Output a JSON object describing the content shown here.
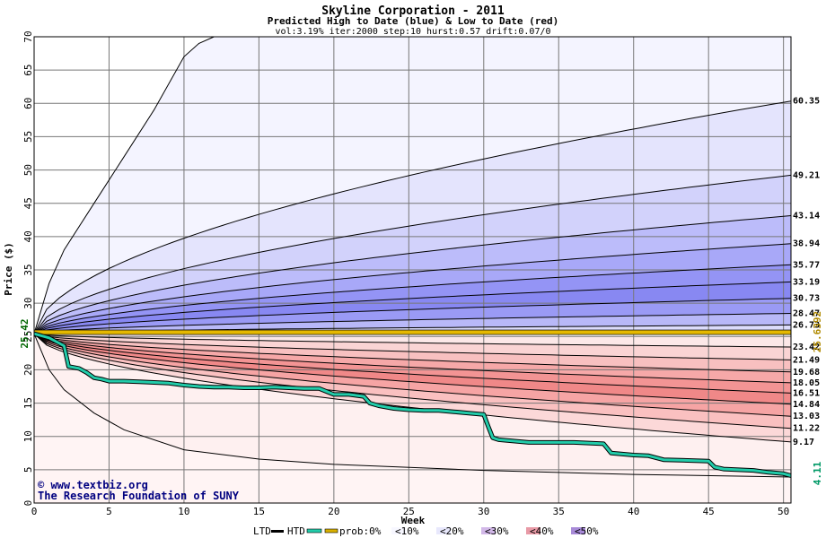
{
  "chart_data": {
    "type": "area",
    "title": "Skyline Corporation - 2011",
    "subtitle": "Predicted High to Date (blue) &  Low to Date (red)",
    "params": "vol:3.19% iter:2000 step:10 hurst:0.57 drift:0.07/0",
    "xlabel": "Week",
    "ylabel": "Price ($)",
    "xlim": [
      0,
      50.5
    ],
    "ylim": [
      0,
      70
    ],
    "x_ticks": [
      0,
      5,
      10,
      15,
      20,
      25,
      30,
      35,
      40,
      45,
      50
    ],
    "y_ticks": [
      0,
      5,
      10,
      15,
      20,
      25,
      30,
      35,
      40,
      45,
      50,
      55,
      60,
      65,
      70
    ],
    "grid": true,
    "start_price": 25.42,
    "start_label": "25.42",
    "reference_price": 25.6392,
    "reference_label": "25.6392",
    "last_price": 4.11,
    "last_label": "4.11",
    "high_band_end_values": [
      {
        "label": "60.35",
        "value": 60.35
      },
      {
        "label": "49.21",
        "value": 49.21
      },
      {
        "label": "43.14",
        "value": 43.14
      },
      {
        "label": "38.94",
        "value": 38.94
      },
      {
        "label": "35.77",
        "value": 35.77
      },
      {
        "label": "33.19",
        "value": 33.19
      },
      {
        "label": "30.73",
        "value": 30.73
      },
      {
        "label": "28.47",
        "value": 28.47
      },
      {
        "label": "26.73",
        "value": 26.73
      }
    ],
    "low_band_end_values": [
      {
        "label": "23.42",
        "value": 23.42
      },
      {
        "label": "21.49",
        "value": 21.49
      },
      {
        "label": "19.68",
        "value": 19.68
      },
      {
        "label": "18.05",
        "value": 18.05
      },
      {
        "label": "16.51",
        "value": 16.51
      },
      {
        "label": "14.84",
        "value": 14.84
      },
      {
        "label": "13.03",
        "value": 13.03
      },
      {
        "label": "11.22",
        "value": 11.22
      },
      {
        "label": "9.17",
        "value": 9.17
      }
    ],
    "outer_high_values": {
      "x": [
        0,
        1,
        2,
        4,
        6,
        8,
        10,
        11,
        12
      ],
      "y": [
        25.42,
        33,
        38,
        45,
        52,
        59,
        67,
        69,
        70
      ]
    },
    "outer_low_values": {
      "x": [
        0,
        1,
        2,
        4,
        6,
        10,
        15,
        20,
        30,
        40,
        50.5
      ],
      "y": [
        25.42,
        20,
        17,
        13.5,
        11,
        8,
        6.6,
        5.8,
        4.9,
        4.3,
        3.9
      ]
    },
    "price_path": {
      "x": [
        0,
        1,
        2,
        2.3,
        3,
        3.5,
        4,
        4.5,
        5,
        6,
        7,
        9,
        10,
        11,
        12,
        13,
        14,
        15,
        16,
        18,
        19,
        20,
        21,
        22,
        22.4,
        23,
        24,
        25,
        26,
        27,
        28,
        29,
        30,
        30.3,
        30.6,
        31,
        33,
        34,
        36,
        38,
        38.5,
        39,
        40,
        41,
        42,
        45,
        45.4,
        46,
        47,
        48,
        49,
        50,
        50.5
      ],
      "y": [
        25.42,
        24.8,
        23.6,
        20.5,
        20.2,
        19.6,
        18.8,
        18.6,
        18.3,
        18.3,
        18.2,
        18,
        17.7,
        17.5,
        17.4,
        17.4,
        17.3,
        17.3,
        17.4,
        17.2,
        17.2,
        16.3,
        16.3,
        16,
        15,
        14.6,
        14.2,
        14,
        13.9,
        13.9,
        13.7,
        13.5,
        13.3,
        11.5,
        9.8,
        9.5,
        9.1,
        9.1,
        9.1,
        8.9,
        7.5,
        7.4,
        7.2,
        7.1,
        6.5,
        6.3,
        5.4,
        5.1,
        5,
        4.9,
        4.6,
        4.4,
        4.11
      ]
    },
    "legend": [
      {
        "label": "LTD",
        "color": "#000000"
      },
      {
        "label": "HTD",
        "color": "#22ccaa"
      },
      {
        "label": "prob:0%",
        "color": "#d9b100"
      },
      {
        "label": "<10%",
        "color": "#f7f7ff"
      },
      {
        "label": "<20%",
        "color": "#e8e8fc"
      },
      {
        "label": "<30%",
        "color": "#d2b8e8"
      },
      {
        "label": "<40%",
        "color": "#e89aa6"
      },
      {
        "label": "<50%",
        "color": "#a88ad8"
      }
    ],
    "colors": {
      "blue_bands": [
        "#f4f4ff",
        "#e4e4fd",
        "#d2d2fb",
        "#bcbcfa",
        "#a8a8f8",
        "#9494f5",
        "#8888f2",
        "#9a9af5",
        "#b8b8f8",
        "#dcdcfb"
      ],
      "red_bands": [
        "#fce8e8",
        "#fad4d4",
        "#f8c0c0",
        "#f6a8a8",
        "#f39494",
        "#f08888",
        "#f6a4a4",
        "#fac0c0",
        "#fcd8d8",
        "#fef0f0"
      ],
      "reference_line": "#e5b800",
      "price_path": "#22ccaa"
    }
  },
  "credits": {
    "line1": "© www.textbiz.org",
    "line2": "The Research Foundation of SUNY"
  }
}
